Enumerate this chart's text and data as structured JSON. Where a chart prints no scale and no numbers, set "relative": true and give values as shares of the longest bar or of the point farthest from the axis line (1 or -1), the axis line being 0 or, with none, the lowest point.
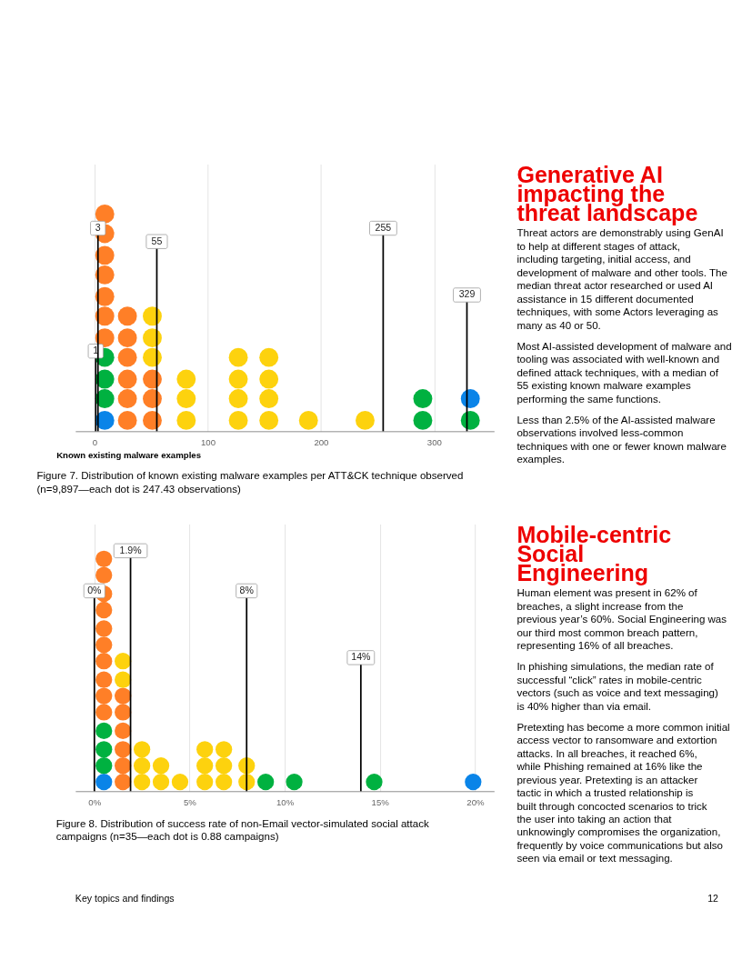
{
  "chart_data": [
    {
      "type": "scatter",
      "title": "Figure 7. Distribution of known existing malware examples per ATT&CK technique observed (n=9,897—each dot is 247.43 observations)",
      "xlabel": "Known existing malware examples",
      "xlim": [
        -17,
        353
      ],
      "xticks": [
        0,
        100,
        200,
        300
      ],
      "relative": true,
      "tick_labels": "x",
      "grid": "x",
      "marker": "circle",
      "series": [
        {
          "color": "#0a84e8",
          "x": [
            9,
            332
          ],
          "values": [
            0.05,
            0.15
          ]
        },
        {
          "color": "#00b140",
          "x": [
            9,
            9,
            9,
            290,
            290,
            332
          ],
          "values": [
            0.15,
            0.24,
            0.34,
            0.05,
            0.15,
            0.05
          ]
        },
        {
          "color": "#ff7f27",
          "x": [
            9,
            9,
            9,
            9,
            9,
            9,
            9,
            29,
            29,
            29,
            29,
            29,
            29,
            51,
            51,
            51
          ],
          "values": [
            0.43,
            0.53,
            0.62,
            0.72,
            0.81,
            0.91,
            1,
            0.05,
            0.15,
            0.24,
            0.34,
            0.43,
            0.53,
            0.05,
            0.15,
            0.24
          ]
        },
        {
          "color": "#fdd20e",
          "x": [
            51,
            51,
            51,
            81,
            81,
            81,
            127,
            127,
            127,
            127,
            154,
            154,
            154,
            154,
            189,
            239
          ],
          "values": [
            0.34,
            0.43,
            0.53,
            0.05,
            0.15,
            0.24,
            0.05,
            0.15,
            0.24,
            0.34,
            0.05,
            0.15,
            0.24,
            0.34,
            0.05,
            0.05
          ]
        }
      ],
      "ref_lines": [
        {
          "axis": "x",
          "value": 1,
          "label": "1",
          "color": "#000000"
        },
        {
          "axis": "x",
          "value": 3,
          "label": "3",
          "color": "#000000"
        },
        {
          "axis": "x",
          "value": 55,
          "label": "55",
          "color": "#000000"
        },
        {
          "axis": "x",
          "value": 255,
          "label": "255",
          "color": "#000000"
        },
        {
          "axis": "x",
          "value": 329,
          "label": "329",
          "color": "#000000"
        }
      ]
    },
    {
      "type": "other",
      "annotations": [
        "Generative AI impacting the threat landscape",
        "Threat actors are demonstrably using GenAI to help at different stages of attack, including targeting, initial access, and development of malware and other tools. The median threat actor researched or used AI assistance in 15 different documented techniques, with some Actors leveraging as many as 40 or 50.",
        "Most AI-assisted development of malware and tooling was associated with well-known and defined attack techniques, with a median of 55 existing known malware examples performing the same functions.",
        "Less than 2.5% of the AI-assisted malware observations involved less-common techniques with one or fewer known malware examples."
      ]
    },
    {
      "type": "scatter",
      "title": "Figure 8. Distribution of success rate of non-Email vector-simulated social attack campaigns (n=35—each dot is 0.88 campaigns)",
      "xlim": [
        -1,
        21
      ],
      "xticks": [
        {
          "value": 0,
          "label": "0%"
        },
        {
          "value": 5,
          "label": "5%"
        },
        {
          "value": 10,
          "label": "10%"
        },
        {
          "value": 15,
          "label": "15%"
        },
        {
          "value": 20,
          "label": "20%"
        }
      ],
      "relative": true,
      "tick_labels": "x",
      "grid": "x",
      "marker": "circle",
      "series": [
        {
          "color": "#0a84e8",
          "x": [
            0.5,
            19.9
          ],
          "values": [
            0.04,
            0.04
          ]
        },
        {
          "color": "#00b140",
          "x": [
            0.5,
            0.5,
            0.5,
            9.0,
            10.5,
            14.7
          ],
          "values": [
            0.11,
            0.18,
            0.26,
            0.04,
            0.04,
            0.04
          ]
        },
        {
          "color": "#ff7f27",
          "x": [
            0.5,
            0.5,
            0.5,
            0.5,
            0.5,
            0.5,
            0.5,
            0.5,
            0.5,
            0.5,
            1.5,
            1.5,
            1.5,
            1.5,
            1.5,
            1.5
          ],
          "values": [
            0.34,
            0.41,
            0.48,
            0.56,
            0.63,
            0.7,
            0.78,
            0.85,
            0.93,
            1,
            0.04,
            0.11,
            0.18,
            0.26,
            0.34,
            0.41
          ]
        },
        {
          "color": "#fdd20e",
          "x": [
            1.5,
            1.5,
            2.5,
            2.5,
            2.5,
            3.5,
            3.5,
            4.5,
            5.8,
            5.8,
            5.8,
            6.8,
            6.8,
            6.8,
            8.0,
            8.0
          ],
          "values": [
            0.48,
            0.56,
            0.04,
            0.11,
            0.18,
            0.04,
            0.11,
            0.04,
            0.04,
            0.11,
            0.18,
            0.04,
            0.11,
            0.18,
            0.04,
            0.11
          ]
        }
      ],
      "ref_lines": [
        {
          "axis": "x",
          "value": 0,
          "label": "0%",
          "color": "#000000"
        },
        {
          "axis": "x",
          "value": 1.9,
          "label": "1.9%",
          "color": "#000000"
        },
        {
          "axis": "x",
          "value": 8,
          "label": "8%",
          "color": "#000000"
        },
        {
          "axis": "x",
          "value": 14,
          "label": "14%",
          "color": "#000000"
        }
      ]
    },
    {
      "type": "other",
      "annotations": [
        "Mobile-centric Social Engineering",
        "Human element was present in 62% of breaches, a slight increase from the previous year’s 60%. Social Engineering was our third most common breach pattern, representing 16% of all breaches.",
        "In phishing simulations, the median rate of successful “click” rates in mobile-centric vectors (such as voice and text messaging) is 40% higher than via email.",
        "Pretexting has become a more common initial access vector to ransomware and extortion attacks. In all breaches, it reached 6%, while Phishing remained at 16% like the previous year. Pretexting is an attacker tactic in which a trusted relationship is built through concocted scenarios to trick the user into taking an action that unknowingly compromises the organization, frequently by voice communications but also seen via email or text messaging."
      ]
    },
    {
      "type": "other",
      "annotations": [
        "Key topics and findings",
        "12"
      ]
    }
  ]
}
